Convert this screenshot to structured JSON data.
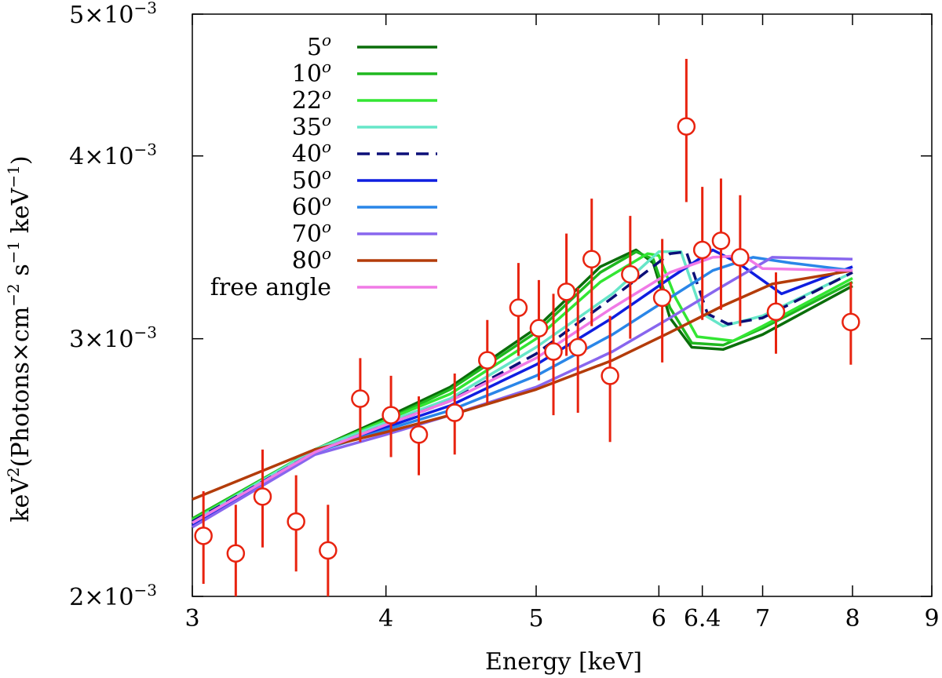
{
  "chart_data": {
    "type": "line",
    "title": "",
    "xlabel": "Energy [keV]",
    "ylabel_parts": {
      "pre": "keV",
      "sup1": "2",
      "mid1": "(Photons×cm",
      "sup2": "−2",
      "mid2": " s",
      "sup3": "−1",
      "mid3": " keV",
      "sup4": "−1",
      "post": ")"
    },
    "xscale": "log",
    "yscale": "log",
    "xlim": [
      3,
      9
    ],
    "ylim": [
      0.002,
      0.005
    ],
    "x_ticks": [
      {
        "value": 3,
        "label": "3"
      },
      {
        "value": 4,
        "label": "4"
      },
      {
        "value": 5,
        "label": "5"
      },
      {
        "value": 6,
        "label": "6"
      },
      {
        "value": 6.4,
        "label": "6.4"
      },
      {
        "value": 7,
        "label": "7"
      },
      {
        "value": 8,
        "label": "8"
      },
      {
        "value": 9,
        "label": "9"
      }
    ],
    "y_ticks": [
      {
        "value": 0.002,
        "mant": "2",
        "exp": "−3"
      },
      {
        "value": 0.003,
        "mant": "3",
        "exp": "−3"
      },
      {
        "value": 0.004,
        "mant": "4",
        "exp": "−3"
      },
      {
        "value": 0.005,
        "mant": "5",
        "exp": "−3"
      }
    ],
    "legend_position": "top-left",
    "series": [
      {
        "name": "5",
        "sup": "o",
        "color": "#0a6e0a",
        "dash": false,
        "x": [
          3.0,
          3.6,
          4.0,
          4.4,
          5.0,
          5.5,
          5.8,
          5.95,
          6.1,
          6.3,
          6.6,
          7.0,
          8.0
        ],
        "y": [
          0.00226,
          0.00252,
          0.00265,
          0.00278,
          0.00305,
          0.00336,
          0.00345,
          0.00338,
          0.0031,
          0.00296,
          0.00295,
          0.00302,
          0.00326
        ]
      },
      {
        "name": "10",
        "sup": "o",
        "color": "#1fb81f",
        "dash": false,
        "x": [
          3.0,
          3.6,
          4.0,
          4.4,
          5.0,
          5.5,
          5.8,
          5.95,
          6.1,
          6.3,
          6.6,
          7.0,
          8.0
        ],
        "y": [
          0.00226,
          0.00252,
          0.00264,
          0.00277,
          0.00303,
          0.00333,
          0.00344,
          0.0034,
          0.00315,
          0.00298,
          0.00297,
          0.00305,
          0.00328
        ]
      },
      {
        "name": "22",
        "sup": "o",
        "color": "#33e633",
        "dash": false,
        "x": [
          3.0,
          3.6,
          4.0,
          4.4,
          5.0,
          5.5,
          5.9,
          6.0,
          6.15,
          6.35,
          6.7,
          7.0,
          8.0
        ],
        "y": [
          0.002255,
          0.00252,
          0.00264,
          0.00275,
          0.003,
          0.00328,
          0.00343,
          0.00342,
          0.0032,
          0.00301,
          0.00299,
          0.00306,
          0.0033
        ]
      },
      {
        "name": "35",
        "sup": "o",
        "color": "#66e6c8",
        "dash": false,
        "x": [
          3.0,
          3.6,
          4.0,
          4.4,
          5.0,
          5.6,
          6.0,
          6.2,
          6.4,
          6.6,
          7.0,
          8.0
        ],
        "y": [
          0.00225,
          0.00252,
          0.00263,
          0.00273,
          0.00296,
          0.00322,
          0.00344,
          0.00344,
          0.00312,
          0.00306,
          0.00311,
          0.00333
        ]
      },
      {
        "name": "40",
        "sup": "o",
        "color": "#0c0f78",
        "dash": true,
        "x": [
          3.0,
          3.6,
          4.0,
          4.4,
          5.0,
          5.6,
          6.1,
          6.25,
          6.45,
          6.65,
          7.0,
          8.0
        ],
        "y": [
          0.00225,
          0.00251,
          0.00262,
          0.00272,
          0.00293,
          0.0032,
          0.00343,
          0.00344,
          0.00312,
          0.00307,
          0.0031,
          0.00333
        ]
      },
      {
        "name": "50",
        "sup": "o",
        "color": "#0f1ee0",
        "dash": false,
        "x": [
          3.0,
          3.6,
          4.0,
          4.4,
          5.0,
          5.6,
          6.1,
          6.5,
          6.75,
          7.2,
          8.0
        ],
        "y": [
          0.002235,
          0.00251,
          0.00261,
          0.0027,
          0.00288,
          0.0031,
          0.0033,
          0.00345,
          0.00338,
          0.00322,
          0.00336
        ]
      },
      {
        "name": "60",
        "sup": "o",
        "color": "#2a86e8",
        "dash": false,
        "x": [
          3.0,
          3.6,
          4.0,
          4.4,
          5.0,
          5.6,
          6.1,
          6.5,
          6.9,
          7.3,
          8.0
        ],
        "y": [
          0.002245,
          0.00251,
          0.0026,
          0.00268,
          0.00283,
          0.00302,
          0.0032,
          0.00334,
          0.00341,
          0.00338,
          0.00334
        ]
      },
      {
        "name": "70",
        "sup": "o",
        "color": "#8866ee",
        "dash": false,
        "x": [
          3.0,
          3.6,
          4.0,
          4.4,
          5.0,
          5.6,
          6.1,
          6.6,
          7.1,
          8.0
        ],
        "y": [
          0.00223,
          0.0025,
          0.00258,
          0.00266,
          0.00278,
          0.00294,
          0.0031,
          0.00326,
          0.00341,
          0.0034
        ]
      },
      {
        "name": "80",
        "sup": "o",
        "color": "#b33c0a",
        "dash": false,
        "x": [
          3.0,
          3.6,
          4.0,
          4.4,
          5.0,
          5.6,
          6.1,
          6.6,
          7.1,
          8.0
        ],
        "y": [
          0.00233,
          0.00252,
          0.00259,
          0.00266,
          0.00277,
          0.0029,
          0.00303,
          0.00316,
          0.00327,
          0.00334
        ]
      },
      {
        "name": "free angle",
        "sup": "",
        "color": "#f07ae6",
        "dash": false,
        "x": [
          3.0,
          3.6,
          4.0,
          4.4,
          5.0,
          5.6,
          6.1,
          6.5,
          6.8,
          7.0,
          8.0
        ],
        "y": [
          0.002245,
          0.00251,
          0.00262,
          0.00272,
          0.00291,
          0.00315,
          0.00333,
          0.00341,
          0.00342,
          0.00335,
          0.00334
        ]
      }
    ],
    "data_points": {
      "color": "#e8230f",
      "x": [
        3.05,
        3.2,
        3.33,
        3.5,
        3.67,
        3.85,
        4.03,
        4.2,
        4.43,
        4.65,
        4.87,
        5.02,
        5.13,
        5.23,
        5.32,
        5.43,
        5.58,
        5.75,
        6.03,
        6.25,
        6.4,
        6.58,
        6.77,
        7.14,
        7.98
      ],
      "y": [
        0.0022,
        0.00214,
        0.00234,
        0.00225,
        0.00215,
        0.00273,
        0.00266,
        0.00258,
        0.00267,
        0.0029,
        0.00315,
        0.00305,
        0.00294,
        0.00323,
        0.00296,
        0.0034,
        0.00283,
        0.00332,
        0.0032,
        0.00419,
        0.00345,
        0.0035,
        0.00341,
        0.00313,
        0.00308
      ],
      "err": [
        0.00016,
        0.00017,
        0.00018,
        0.00017,
        0.00016,
        0.00018,
        0.00017,
        0.00016,
        0.00017,
        0.00019,
        0.00023,
        0.00024,
        0.00028,
        0.00031,
        0.00029,
        0.00034,
        0.00028,
        0.00032,
        0.00031,
        0.00047,
        0.00036,
        0.00036,
        0.00035,
        0.0002,
        0.0002
      ]
    }
  }
}
